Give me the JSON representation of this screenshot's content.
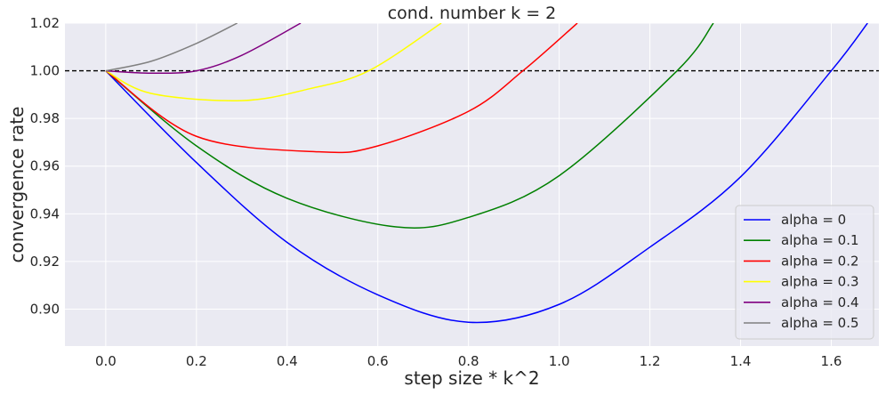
{
  "chart_data": {
    "type": "line",
    "title": "cond. number k = 2",
    "xlabel": "step size * k^2",
    "ylabel": "convergence rate",
    "xlim": [
      -0.09,
      1.705
    ],
    "ylim": [
      0.8845,
      1.02
    ],
    "xticks": [
      "0.0",
      "0.2",
      "0.4",
      "0.6",
      "0.8",
      "1.0",
      "1.2",
      "1.4",
      "1.6"
    ],
    "xtick_values": [
      0.0,
      0.2,
      0.4,
      0.6,
      0.8,
      1.0,
      1.2,
      1.4,
      1.6
    ],
    "yticks": [
      "0.90",
      "0.92",
      "0.94",
      "0.96",
      "0.98",
      "1.00",
      "1.02"
    ],
    "ytick_values": [
      0.9,
      0.92,
      0.94,
      0.96,
      0.98,
      1.0,
      1.02
    ],
    "reference_line": {
      "y": 1.0,
      "style": "dashed",
      "color": "#000000"
    },
    "grid": true,
    "legend_position": "lower right",
    "series": [
      {
        "name": "alpha = 0",
        "color": "#0000ff",
        "x": [
          0.0,
          0.2,
          0.4,
          0.6,
          0.8,
          1.0,
          1.2,
          1.4,
          1.6,
          1.68
        ],
        "y": [
          1.0,
          0.9615,
          0.928,
          0.906,
          0.8945,
          0.902,
          0.926,
          0.9555,
          1.0,
          1.02
        ]
      },
      {
        "name": "alpha = 0.1",
        "color": "#008000",
        "x": [
          0.0,
          0.2,
          0.4,
          0.64,
          0.8,
          1.0,
          1.26,
          1.34
        ],
        "y": [
          1.0,
          0.9685,
          0.9465,
          0.9345,
          0.9385,
          0.956,
          1.0,
          1.02
        ]
      },
      {
        "name": "alpha = 0.2",
        "color": "#ff0000",
        "x": [
          0.0,
          0.2,
          0.47,
          0.6,
          0.8,
          0.92,
          1.04
        ],
        "y": [
          1.0,
          0.9725,
          0.966,
          0.9685,
          0.983,
          1.0,
          1.02
        ]
      },
      {
        "name": "alpha = 0.3",
        "color": "#ffff00",
        "x": [
          0.0,
          0.1,
          0.3,
          0.45,
          0.58,
          0.74
        ],
        "y": [
          1.0,
          0.9905,
          0.9875,
          0.9925,
          1.0,
          1.02
        ]
      },
      {
        "name": "alpha = 0.4",
        "color": "#800080",
        "x": [
          0.0,
          0.1,
          0.2,
          0.3,
          0.43
        ],
        "y": [
          1.0,
          0.999,
          1.0,
          1.0065,
          1.02
        ]
      },
      {
        "name": "alpha = 0.5",
        "color": "#808080",
        "x": [
          0.0,
          0.1,
          0.2,
          0.29
        ],
        "y": [
          1.0,
          1.004,
          1.0115,
          1.02
        ]
      }
    ]
  }
}
